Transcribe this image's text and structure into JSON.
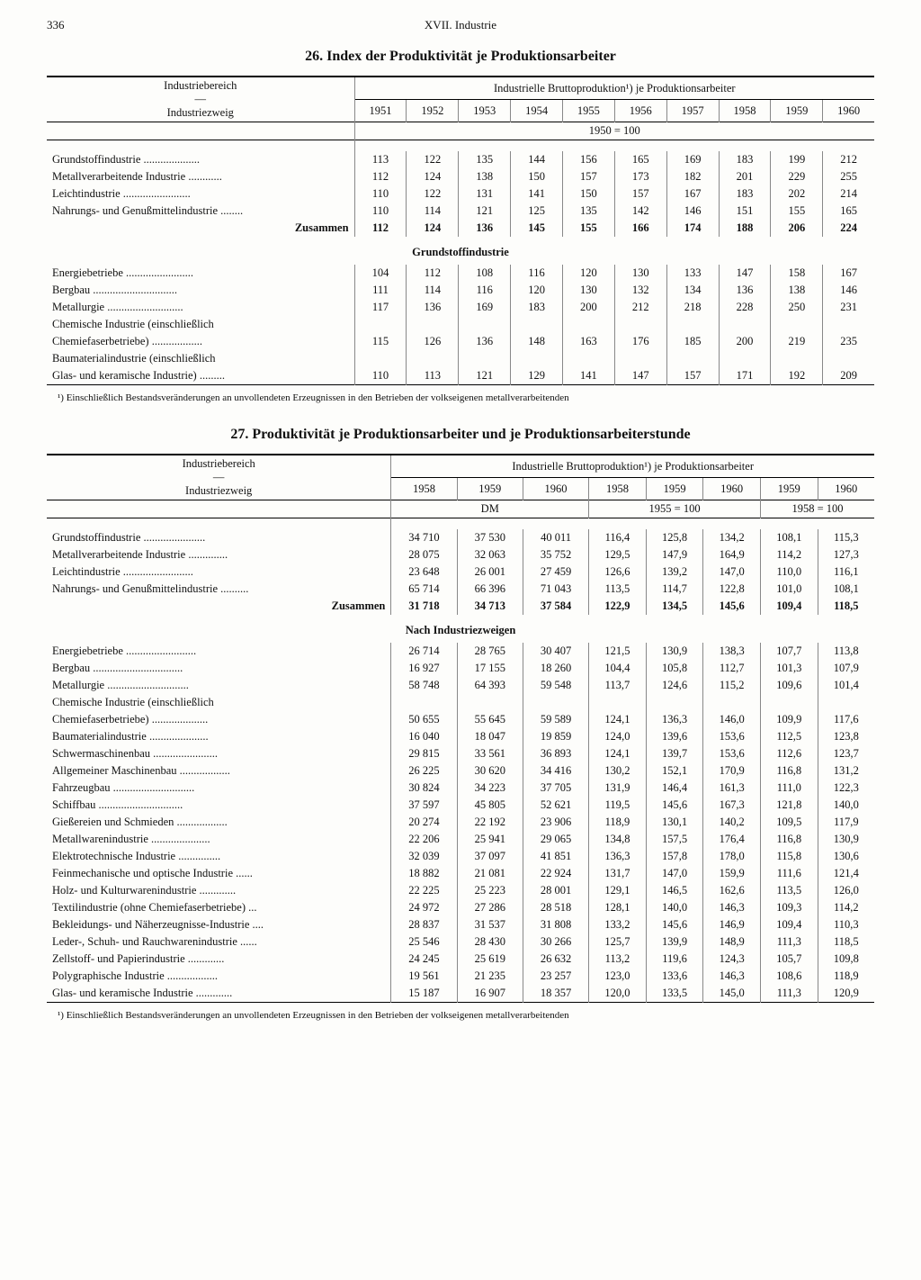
{
  "page": {
    "number": "336",
    "chapter": "XVII. Industrie"
  },
  "table26": {
    "title": "26. Index der Produktivität je Produktionsarbeiter",
    "header_span": "Industrielle Bruttoproduktion¹) je Produktionsarbeiter",
    "row_header1": "Industriebereich",
    "row_header2": "Industriezweig",
    "years": [
      "1951",
      "1952",
      "1953",
      "1954",
      "1955",
      "1956",
      "1957",
      "1958",
      "1959",
      "1960"
    ],
    "baseline": "1950 = 100",
    "section1_rows": [
      {
        "label": "Grundstoffindustrie",
        "v": [
          "113",
          "122",
          "135",
          "144",
          "156",
          "165",
          "169",
          "183",
          "199",
          "212"
        ]
      },
      {
        "label": "Metallverarbeitende Industrie",
        "v": [
          "112",
          "124",
          "138",
          "150",
          "157",
          "173",
          "182",
          "201",
          "229",
          "255"
        ]
      },
      {
        "label": "Leichtindustrie",
        "v": [
          "110",
          "122",
          "131",
          "141",
          "150",
          "157",
          "167",
          "183",
          "202",
          "214"
        ]
      },
      {
        "label": "Nahrungs- und Genußmittelindustrie",
        "v": [
          "110",
          "114",
          "121",
          "125",
          "135",
          "142",
          "146",
          "151",
          "155",
          "165"
        ]
      }
    ],
    "zusammen": {
      "label": "Zusammen",
      "v": [
        "112",
        "124",
        "136",
        "145",
        "155",
        "166",
        "174",
        "188",
        "206",
        "224"
      ]
    },
    "section2_title": "Grundstoffindustrie",
    "section2_rows": [
      {
        "label": "Energiebetriebe",
        "v": [
          "104",
          "112",
          "108",
          "116",
          "120",
          "130",
          "133",
          "147",
          "158",
          "167"
        ]
      },
      {
        "label": "Bergbau",
        "v": [
          "111",
          "114",
          "116",
          "120",
          "130",
          "132",
          "134",
          "136",
          "138",
          "146"
        ]
      },
      {
        "label": "Metallurgie",
        "v": [
          "117",
          "136",
          "169",
          "183",
          "200",
          "212",
          "218",
          "228",
          "250",
          "231"
        ]
      },
      {
        "label": "Chemische Industrie (einschließlich",
        "continued": true,
        "v": [
          "",
          "",
          "",
          "",
          "",
          "",
          "",
          "",
          "",
          ""
        ]
      },
      {
        "label": "  Chemiefaserbetriebe)",
        "v": [
          "115",
          "126",
          "136",
          "148",
          "163",
          "176",
          "185",
          "200",
          "219",
          "235"
        ]
      },
      {
        "label": "Baumaterialindustrie (einschließlich",
        "continued": true,
        "v": [
          "",
          "",
          "",
          "",
          "",
          "",
          "",
          "",
          "",
          ""
        ]
      },
      {
        "label": "  Glas- und keramische Industrie)",
        "v": [
          "110",
          "113",
          "121",
          "129",
          "141",
          "147",
          "157",
          "171",
          "192",
          "209"
        ]
      }
    ],
    "footnote": "¹) Einschließlich Bestandsveränderungen an unvollendeten Erzeugnissen in den Betrieben der volkseigenen metallverarbeitenden"
  },
  "table27": {
    "title": "27. Produktivität je Produktionsarbeiter und je Produktionsarbeiterstunde",
    "header_span": "Industrielle Bruttoproduktion¹) je Produktionsarbeiter",
    "row_header1": "Industriebereich",
    "row_header2": "Industriezweig",
    "group1_years": [
      "1958",
      "1959",
      "1960"
    ],
    "group2_years": [
      "1958",
      "1959",
      "1960"
    ],
    "group3_years": [
      "1959",
      "1960"
    ],
    "unit1": "DM",
    "unit2": "1955 = 100",
    "unit3": "1958 = 100",
    "section1_rows": [
      {
        "label": "Grundstoffindustrie",
        "v": [
          "34 710",
          "37 530",
          "40 011",
          "116,4",
          "125,8",
          "134,2",
          "108,1",
          "115,3"
        ]
      },
      {
        "label": "Metallverarbeitende Industrie",
        "v": [
          "28 075",
          "32 063",
          "35 752",
          "129,5",
          "147,9",
          "164,9",
          "114,2",
          "127,3"
        ]
      },
      {
        "label": "Leichtindustrie",
        "v": [
          "23 648",
          "26 001",
          "27 459",
          "126,6",
          "139,2",
          "147,0",
          "110,0",
          "116,1"
        ]
      },
      {
        "label": "Nahrungs- und Genußmittelindustrie",
        "v": [
          "65 714",
          "66 396",
          "71 043",
          "113,5",
          "114,7",
          "122,8",
          "101,0",
          "108,1"
        ]
      }
    ],
    "zusammen": {
      "label": "Zusammen",
      "v": [
        "31 718",
        "34 713",
        "37 584",
        "122,9",
        "134,5",
        "145,6",
        "109,4",
        "118,5"
      ]
    },
    "section2_title": "Nach Industriezweigen",
    "section2_rows": [
      {
        "label": "Energiebetriebe",
        "v": [
          "26 714",
          "28 765",
          "30 407",
          "121,5",
          "130,9",
          "138,3",
          "107,7",
          "113,8"
        ]
      },
      {
        "label": "Bergbau",
        "v": [
          "16 927",
          "17 155",
          "18 260",
          "104,4",
          "105,8",
          "112,7",
          "101,3",
          "107,9"
        ]
      },
      {
        "label": "Metallurgie",
        "v": [
          "58 748",
          "64 393",
          "59 548",
          "113,7",
          "124,6",
          "115,2",
          "109,6",
          "101,4"
        ]
      },
      {
        "label": "Chemische Industrie (einschließlich",
        "continued": true,
        "v": [
          "",
          "",
          "",
          "",
          "",
          "",
          "",
          ""
        ]
      },
      {
        "label": "  Chemiefaserbetriebe)",
        "v": [
          "50 655",
          "55 645",
          "59 589",
          "124,1",
          "136,3",
          "146,0",
          "109,9",
          "117,6"
        ]
      },
      {
        "label": "Baumaterialindustrie",
        "v": [
          "16 040",
          "18 047",
          "19 859",
          "124,0",
          "139,6",
          "153,6",
          "112,5",
          "123,8"
        ]
      },
      {
        "label": "Schwermaschinenbau",
        "v": [
          "29 815",
          "33 561",
          "36 893",
          "124,1",
          "139,7",
          "153,6",
          "112,6",
          "123,7"
        ]
      },
      {
        "label": "Allgemeiner Maschinenbau",
        "v": [
          "26 225",
          "30 620",
          "34 416",
          "130,2",
          "152,1",
          "170,9",
          "116,8",
          "131,2"
        ]
      },
      {
        "label": "Fahrzeugbau",
        "v": [
          "30 824",
          "34 223",
          "37 705",
          "131,9",
          "146,4",
          "161,3",
          "111,0",
          "122,3"
        ]
      },
      {
        "label": "Schiffbau",
        "v": [
          "37 597",
          "45 805",
          "52 621",
          "119,5",
          "145,6",
          "167,3",
          "121,8",
          "140,0"
        ]
      },
      {
        "label": "Gießereien und Schmieden",
        "v": [
          "20 274",
          "22 192",
          "23 906",
          "118,9",
          "130,1",
          "140,2",
          "109,5",
          "117,9"
        ]
      },
      {
        "label": "Metallwarenindustrie",
        "v": [
          "22 206",
          "25 941",
          "29 065",
          "134,8",
          "157,5",
          "176,4",
          "116,8",
          "130,9"
        ]
      },
      {
        "label": "Elektrotechnische Industrie",
        "v": [
          "32 039",
          "37 097",
          "41 851",
          "136,3",
          "157,8",
          "178,0",
          "115,8",
          "130,6"
        ]
      },
      {
        "label": "Feinmechanische und optische Industrie",
        "v": [
          "18 882",
          "21 081",
          "22 924",
          "131,7",
          "147,0",
          "159,9",
          "111,6",
          "121,4"
        ]
      },
      {
        "label": "Holz- und Kulturwarenindustrie",
        "v": [
          "22 225",
          "25 223",
          "28 001",
          "129,1",
          "146,5",
          "162,6",
          "113,5",
          "126,0"
        ]
      },
      {
        "label": "Textilindustrie (ohne Chemiefaserbetriebe)",
        "v": [
          "24 972",
          "27 286",
          "28 518",
          "128,1",
          "140,0",
          "146,3",
          "109,3",
          "114,2"
        ]
      },
      {
        "label": "Bekleidungs- und Näherzeugnisse-Industrie",
        "v": [
          "28 837",
          "31 537",
          "31 808",
          "133,2",
          "145,6",
          "146,9",
          "109,4",
          "110,3"
        ]
      },
      {
        "label": "Leder-, Schuh- und Rauchwarenindustrie",
        "v": [
          "25 546",
          "28 430",
          "30 266",
          "125,7",
          "139,9",
          "148,9",
          "111,3",
          "118,5"
        ]
      },
      {
        "label": "Zellstoff- und Papierindustrie",
        "v": [
          "24 245",
          "25 619",
          "26 632",
          "113,2",
          "119,6",
          "124,3",
          "105,7",
          "109,8"
        ]
      },
      {
        "label": "Polygraphische Industrie",
        "v": [
          "19 561",
          "21 235",
          "23 257",
          "123,0",
          "133,6",
          "146,3",
          "108,6",
          "118,9"
        ]
      },
      {
        "label": "Glas- und keramische Industrie",
        "v": [
          "15 187",
          "16 907",
          "18 357",
          "120,0",
          "133,5",
          "145,0",
          "111,3",
          "120,9"
        ]
      }
    ],
    "footnote": "¹) Einschließlich Bestandsveränderungen an unvollendeten Erzeugnissen in den Betrieben der volkseigenen metallverarbeitenden"
  }
}
